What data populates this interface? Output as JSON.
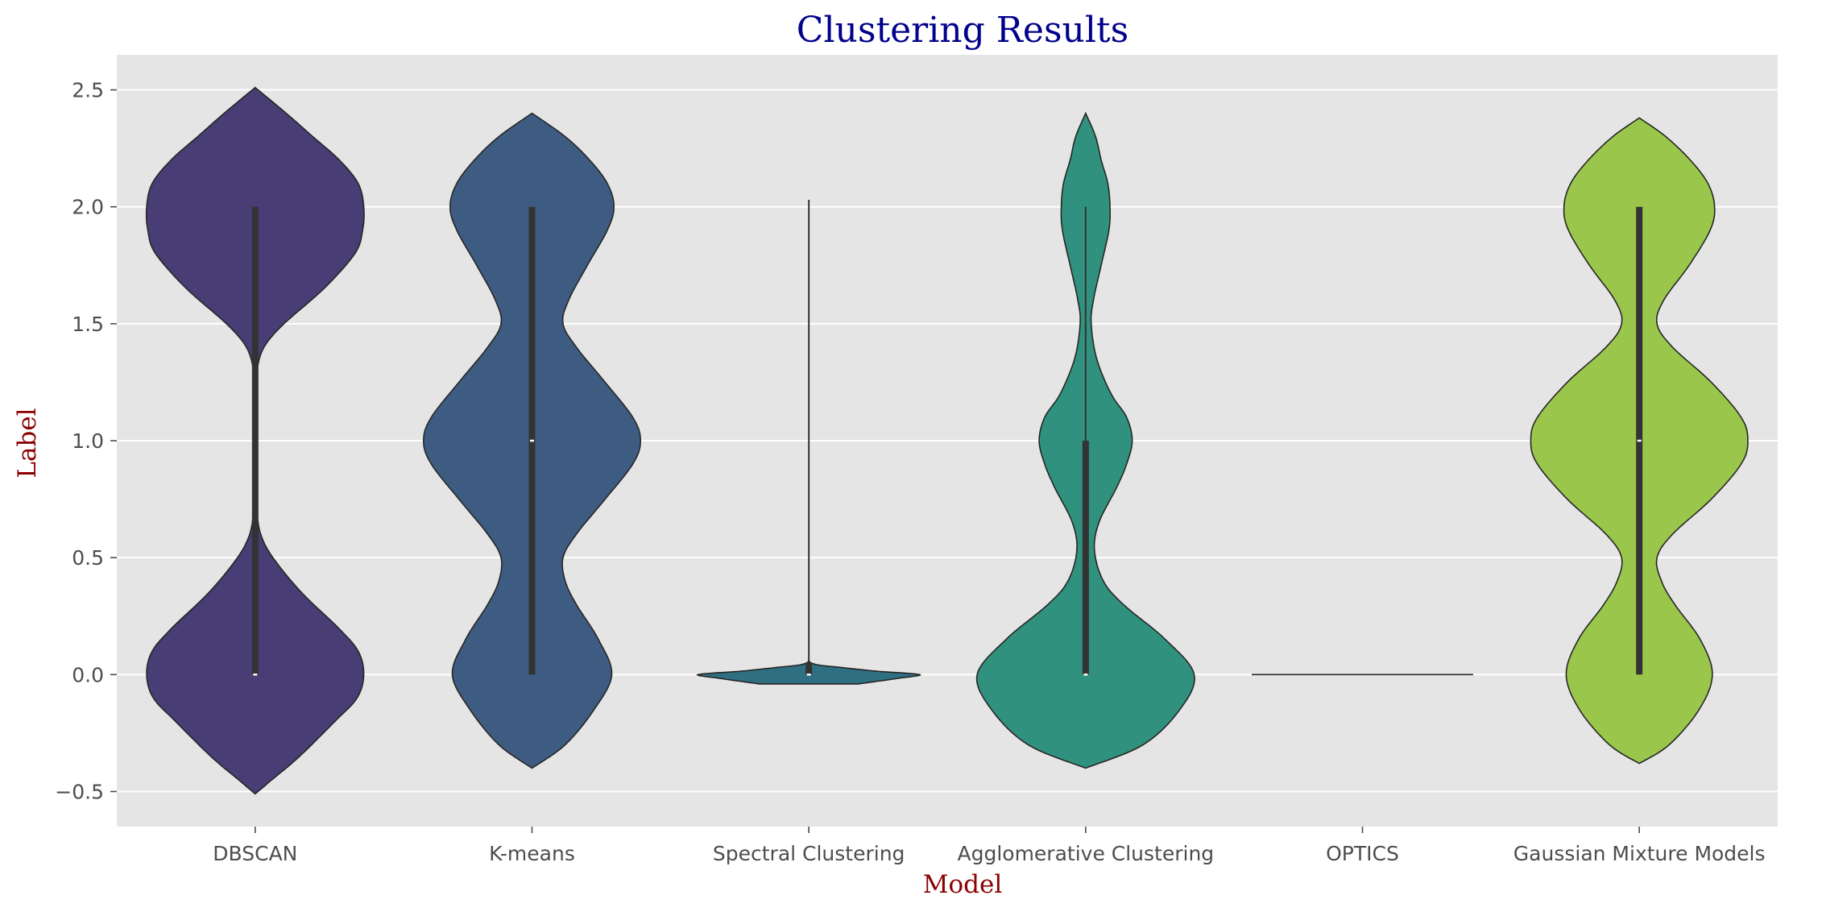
{
  "chart_data": {
    "type": "violin",
    "title": "Clustering Results",
    "xlabel": "Model",
    "ylabel": "Label",
    "ylim": [
      -0.65,
      2.65
    ],
    "yticks": [
      "−0.5",
      "0.0",
      "0.5",
      "1.0",
      "1.5",
      "2.0",
      "2.5"
    ],
    "ytick_values": [
      -0.5,
      0,
      0.5,
      1,
      1.5,
      2,
      2.5
    ],
    "grid": true,
    "colors": {
      "background": "#e5e5e5",
      "grid": "#ffffff",
      "title": "#00008b",
      "axis_label": "#8b0000",
      "edge": "#262626",
      "box": "#333333"
    },
    "categories": [
      "DBSCAN",
      "K-means",
      "Spectral Clustering",
      "Agglomerative Clustering",
      "OPTICS",
      "Gaussian Mixture Models"
    ],
    "violins": [
      {
        "category": "DBSCAN",
        "color": "#483d74",
        "y": [
          -0.51,
          -0.45,
          -0.35,
          -0.2,
          -0.1,
          0,
          0.1,
          0.2,
          0.35,
          0.5,
          0.6,
          0.7,
          0.8,
          1.0,
          1.2,
          1.3,
          1.4,
          1.5,
          1.65,
          1.8,
          1.9,
          2.0,
          2.1,
          2.2,
          2.3,
          2.4,
          2.51
        ],
        "w": [
          0.0,
          0.15,
          0.4,
          0.72,
          0.92,
          0.98,
          0.93,
          0.75,
          0.42,
          0.16,
          0.05,
          0.015,
          0.0,
          0.0,
          0.0,
          0.015,
          0.08,
          0.26,
          0.62,
          0.9,
          0.97,
          0.98,
          0.93,
          0.76,
          0.52,
          0.28,
          0.0
        ],
        "whisker": [
          0,
          2
        ],
        "box": [
          0,
          2
        ],
        "median": 0.0
      },
      {
        "category": "K-means",
        "color": "#3e5c81",
        "y": [
          -0.4,
          -0.3,
          -0.15,
          0,
          0.15,
          0.3,
          0.4,
          0.5,
          0.6,
          0.75,
          0.9,
          1.0,
          1.1,
          1.25,
          1.4,
          1.5,
          1.6,
          1.75,
          1.9,
          2.0,
          2.1,
          2.2,
          2.3,
          2.4
        ],
        "w": [
          0.0,
          0.3,
          0.56,
          0.72,
          0.6,
          0.4,
          0.3,
          0.28,
          0.4,
          0.66,
          0.91,
          0.98,
          0.91,
          0.66,
          0.4,
          0.28,
          0.33,
          0.5,
          0.68,
          0.74,
          0.68,
          0.52,
          0.3,
          0.0
        ],
        "whisker": [
          0,
          2
        ],
        "box": [
          0,
          2
        ],
        "median": 1.0
      },
      {
        "category": "Spectral Clustering",
        "color": "#2f6f82",
        "y": [
          -0.04,
          -0.03,
          -0.015,
          0,
          0.015,
          0.03,
          0.04,
          0.05,
          0.06
        ],
        "w": [
          0.45,
          0.6,
          0.82,
          1.0,
          0.6,
          0.3,
          0.1,
          0.02,
          0.0
        ],
        "whisker": [
          0,
          2.03
        ],
        "box": [
          0,
          0.05
        ],
        "median": 0.0
      },
      {
        "category": "Agglomerative Clustering",
        "color": "#30917e",
        "y": [
          -0.4,
          -0.3,
          -0.15,
          0,
          0.15,
          0.3,
          0.4,
          0.53,
          0.65,
          0.8,
          0.9,
          1.0,
          1.1,
          1.2,
          1.35,
          1.5,
          1.6,
          1.75,
          1.9,
          2.0,
          2.1,
          2.2,
          2.3,
          2.4
        ],
        "w": [
          0.0,
          0.52,
          0.85,
          0.98,
          0.72,
          0.34,
          0.16,
          0.08,
          0.12,
          0.28,
          0.37,
          0.42,
          0.37,
          0.23,
          0.1,
          0.05,
          0.07,
          0.14,
          0.21,
          0.22,
          0.2,
          0.14,
          0.09,
          0.0
        ],
        "whisker": [
          0,
          2
        ],
        "box": [
          0,
          1
        ],
        "median": 0.0
      },
      {
        "category": "OPTICS",
        "color": "#2f9e7a",
        "y": [
          0,
          0
        ],
        "w": [
          0,
          0
        ],
        "flat": true,
        "whisker": null,
        "box": null,
        "median": null
      },
      {
        "category": "Gaussian Mixture Models",
        "color": "#9ac74b",
        "y": [
          -0.38,
          -0.3,
          -0.15,
          0,
          0.15,
          0.3,
          0.4,
          0.5,
          0.6,
          0.75,
          0.9,
          1.0,
          1.1,
          1.25,
          1.4,
          1.5,
          1.6,
          1.75,
          1.9,
          2.0,
          2.1,
          2.2,
          2.3,
          2.38
        ],
        "w": [
          0.0,
          0.27,
          0.54,
          0.66,
          0.55,
          0.32,
          0.2,
          0.16,
          0.3,
          0.65,
          0.92,
          0.98,
          0.92,
          0.65,
          0.3,
          0.16,
          0.22,
          0.45,
          0.64,
          0.68,
          0.62,
          0.46,
          0.24,
          0.0
        ],
        "whisker": [
          0,
          2
        ],
        "box": [
          0,
          2
        ],
        "median": 1.0
      }
    ]
  }
}
